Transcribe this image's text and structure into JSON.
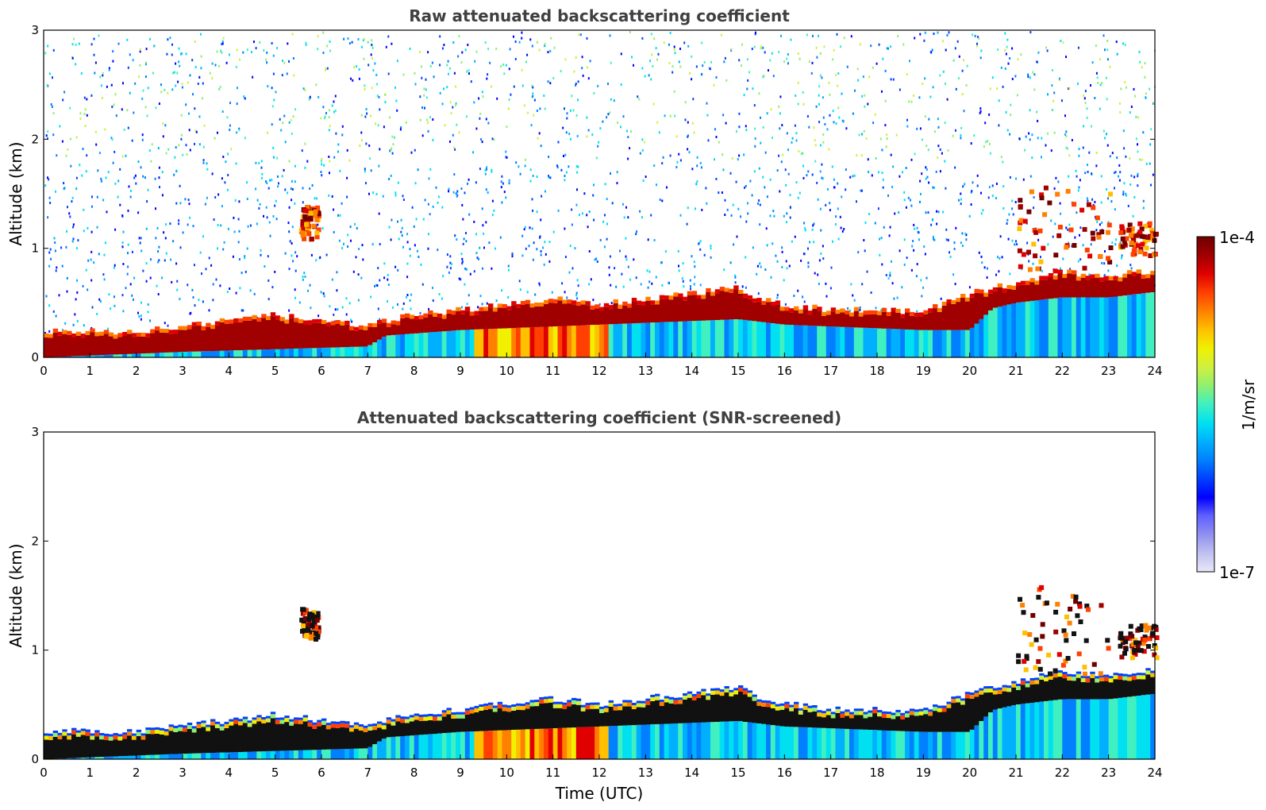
{
  "chart_data": [
    {
      "type": "heatmap",
      "title": "Raw attenuated backscattering coefficient",
      "xlabel": "",
      "ylabel": "Altitude (km)",
      "xlim": [
        0,
        24
      ],
      "ylim": [
        0,
        3
      ],
      "xticks": [
        "0",
        "1",
        "2",
        "3",
        "4",
        "5",
        "6",
        "7",
        "8",
        "9",
        "10",
        "11",
        "12",
        "13",
        "14",
        "15",
        "16",
        "17",
        "18",
        "19",
        "20",
        "21",
        "22",
        "23",
        "24"
      ],
      "yticks": [
        "0",
        "1",
        "2",
        "3"
      ],
      "noise_background": true,
      "layer_top_km": {
        "x": [
          0,
          1,
          2,
          3,
          4,
          5,
          6,
          7,
          7.4,
          8,
          9,
          10,
          11,
          12,
          13,
          14,
          15,
          15.5,
          16,
          17,
          18,
          19,
          20,
          20.5,
          21,
          21.5,
          22,
          23,
          23.5,
          24
        ],
        "y": [
          0.2,
          0.2,
          0.2,
          0.25,
          0.3,
          0.35,
          0.3,
          0.25,
          0.3,
          0.35,
          0.4,
          0.45,
          0.5,
          0.45,
          0.5,
          0.55,
          0.6,
          0.5,
          0.45,
          0.4,
          0.4,
          0.38,
          0.55,
          0.6,
          0.65,
          0.7,
          0.75,
          0.7,
          0.75,
          0.75
        ]
      },
      "layer_bottom_km": {
        "x": [
          0,
          3,
          7,
          7.4,
          9,
          12,
          15,
          16,
          19,
          20,
          20.5,
          21,
          22,
          23,
          24
        ],
        "y": [
          0.0,
          0.05,
          0.1,
          0.2,
          0.25,
          0.3,
          0.35,
          0.3,
          0.25,
          0.25,
          0.45,
          0.5,
          0.55,
          0.55,
          0.6
        ]
      },
      "elevated_layers": [
        {
          "x0": 5.5,
          "x1": 5.9,
          "y0": 1.1,
          "y1": 1.4
        },
        {
          "x0": 21.0,
          "x1": 23.0,
          "y0": 0.8,
          "y1": 1.6
        },
        {
          "x0": 23.2,
          "x1": 24.0,
          "y0": 0.95,
          "y1": 1.25
        }
      ]
    },
    {
      "type": "heatmap",
      "title": "Attenuated backscattering coefficient (SNR-screened)",
      "xlabel": "Time (UTC)",
      "ylabel": "Altitude (km)",
      "xlim": [
        0,
        24
      ],
      "ylim": [
        0,
        3
      ],
      "xticks": [
        "0",
        "1",
        "2",
        "3",
        "4",
        "5",
        "6",
        "7",
        "8",
        "9",
        "10",
        "11",
        "12",
        "13",
        "14",
        "15",
        "16",
        "17",
        "18",
        "19",
        "20",
        "21",
        "22",
        "23",
        "24"
      ],
      "yticks": [
        "0",
        "1",
        "2",
        "3"
      ],
      "noise_background": false,
      "layer_top_km": {
        "x": [
          0,
          1,
          2,
          3,
          4,
          5,
          6,
          7,
          7.4,
          8,
          9,
          10,
          11,
          12,
          13,
          14,
          15,
          15.5,
          16,
          17,
          18,
          19,
          20,
          20.5,
          21,
          21.5,
          22,
          23,
          23.5,
          24
        ],
        "y": [
          0.2,
          0.2,
          0.2,
          0.25,
          0.3,
          0.35,
          0.3,
          0.25,
          0.3,
          0.35,
          0.4,
          0.45,
          0.5,
          0.45,
          0.5,
          0.55,
          0.6,
          0.5,
          0.45,
          0.4,
          0.4,
          0.38,
          0.55,
          0.6,
          0.65,
          0.7,
          0.75,
          0.7,
          0.75,
          0.75
        ]
      },
      "layer_bottom_km": {
        "x": [
          0,
          3,
          7,
          7.4,
          9,
          12,
          15,
          16,
          19,
          20,
          20.5,
          21,
          22,
          23,
          24
        ],
        "y": [
          0.0,
          0.05,
          0.1,
          0.2,
          0.25,
          0.3,
          0.35,
          0.3,
          0.25,
          0.25,
          0.45,
          0.5,
          0.55,
          0.55,
          0.6
        ]
      },
      "elevated_layers": [
        {
          "x0": 5.5,
          "x1": 5.9,
          "y0": 1.1,
          "y1": 1.4
        },
        {
          "x0": 21.0,
          "x1": 23.0,
          "y0": 0.8,
          "y1": 1.6
        },
        {
          "x0": 23.2,
          "x1": 24.0,
          "y0": 0.95,
          "y1": 1.25
        }
      ]
    }
  ],
  "colorbar": {
    "label": "1/m/sr",
    "max_label": "1e-4",
    "min_label": "1e-7",
    "colors": [
      "#e8e8f8",
      "#c0c0f0",
      "#9090f0",
      "#6060ff",
      "#0000ff",
      "#0040ff",
      "#0080ff",
      "#00b0ff",
      "#00e0f0",
      "#40f0c0",
      "#90f070",
      "#d0f040",
      "#f0f000",
      "#ffc000",
      "#ff8000",
      "#ff4000",
      "#e00000",
      "#a00000",
      "#700000"
    ]
  }
}
